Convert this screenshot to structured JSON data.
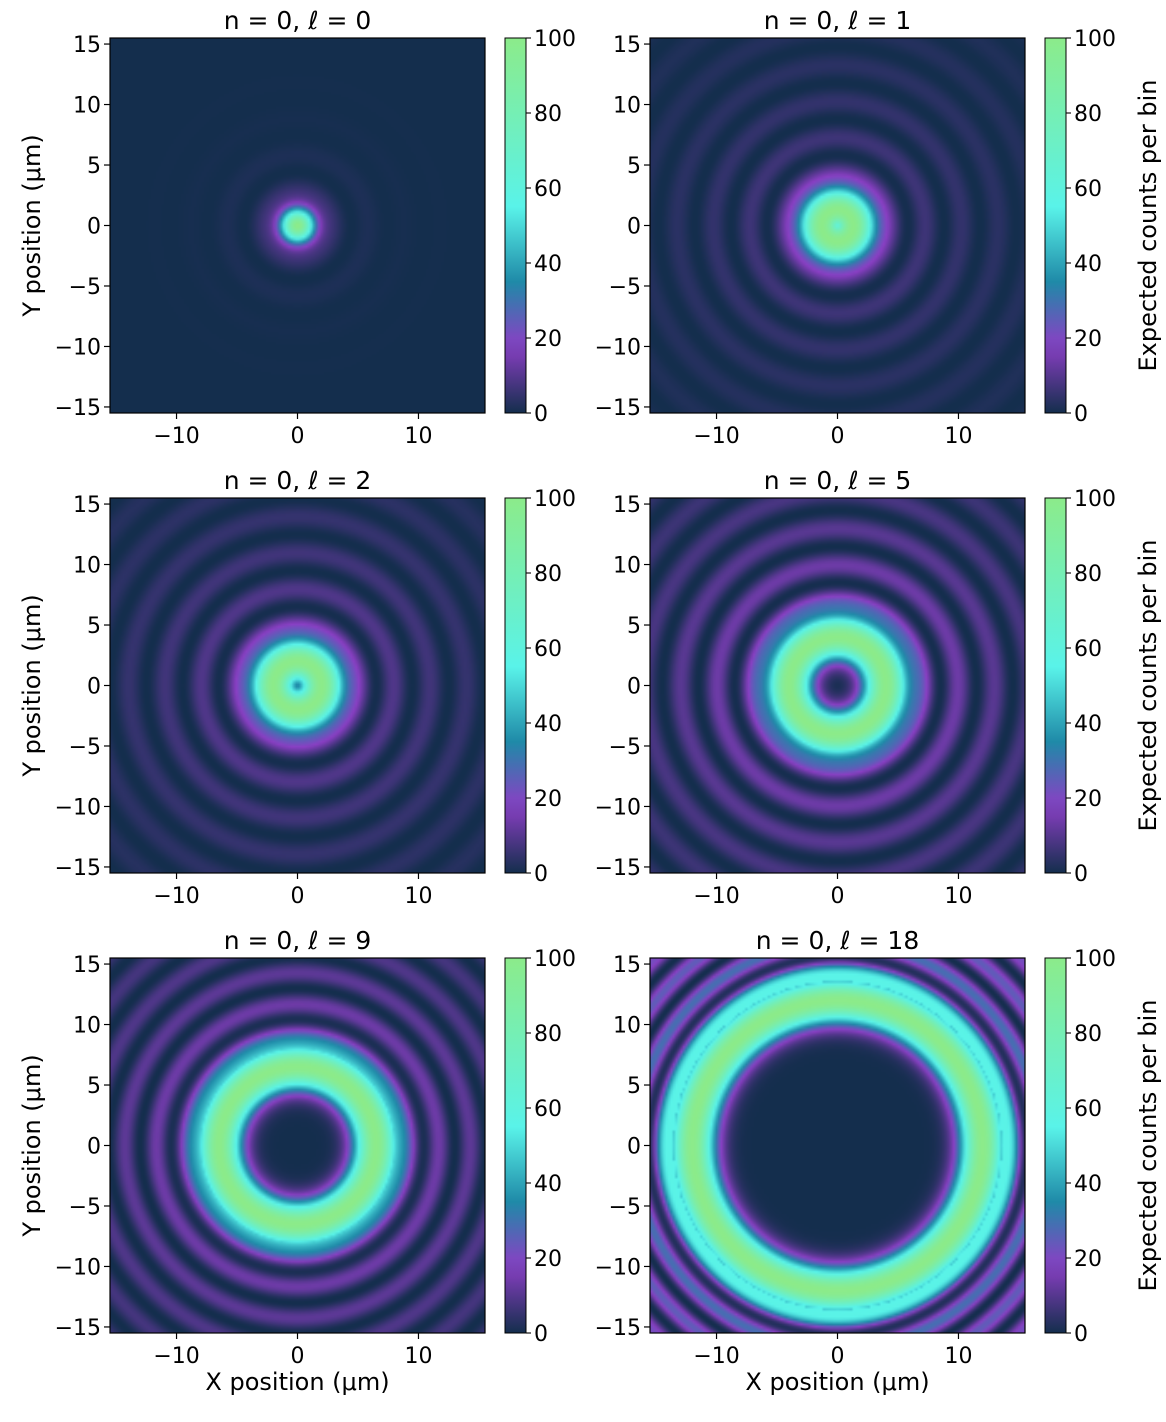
{
  "figure": {
    "xlabel": "X position (μm)",
    "ylabel": "Y position (μm)",
    "colorbar_label": "Expected counts per bin",
    "colormap": [
      "#142e4d",
      "#8a3fc4",
      "#1f8aa8",
      "#59f3e9",
      "#8ceb8a"
    ]
  },
  "chart_data": [
    {
      "type": "heatmap",
      "title": "n = 0, ℓ = 0",
      "n": 0,
      "l": 0,
      "xlabel": "",
      "ylabel": "Y position (μm)",
      "xlim": [
        -15.5,
        15.5
      ],
      "ylim": [
        -15.5,
        15.5
      ],
      "xticks": [
        -10,
        0,
        10
      ],
      "yticks": [
        -15,
        -10,
        -5,
        0,
        5,
        10,
        15
      ],
      "colorbar": {
        "ticks": [
          0,
          20,
          40,
          60,
          80,
          100
        ],
        "range": [
          0,
          100
        ],
        "label": ""
      },
      "ring_peak_radius_um": 0.0,
      "main_ring_peak": 100,
      "side_ring_peak": 8,
      "side_ring_period_um": 3.0
    },
    {
      "type": "heatmap",
      "title": "n = 0, ℓ = 1",
      "n": 0,
      "l": 1,
      "xlabel": "",
      "ylabel": "",
      "xlim": [
        -15.5,
        15.5
      ],
      "ylim": [
        -15.5,
        15.5
      ],
      "xticks": [
        -10,
        0,
        10
      ],
      "yticks": [
        -15,
        -10,
        -5,
        0,
        5,
        10,
        15
      ],
      "colorbar": {
        "ticks": [
          0,
          20,
          40,
          60,
          80,
          100
        ],
        "range": [
          0,
          100
        ],
        "label": "Expected counts per bin"
      },
      "ring_peak_radius_um": 1.3,
      "main_ring_peak": 100,
      "side_ring_peak": 10,
      "side_ring_period_um": 3.0
    },
    {
      "type": "heatmap",
      "title": "n = 0, ℓ = 2",
      "n": 0,
      "l": 2,
      "xlabel": "",
      "ylabel": "Y position (μm)",
      "xlim": [
        -15.5,
        15.5
      ],
      "ylim": [
        -15.5,
        15.5
      ],
      "xticks": [
        -10,
        0,
        10
      ],
      "yticks": [
        -15,
        -10,
        -5,
        0,
        5,
        10,
        15
      ],
      "colorbar": {
        "ticks": [
          0,
          20,
          40,
          60,
          80,
          100
        ],
        "range": [
          0,
          100
        ],
        "label": ""
      },
      "ring_peak_radius_um": 2.0,
      "main_ring_peak": 100,
      "side_ring_peak": 14,
      "side_ring_period_um": 3.0
    },
    {
      "type": "heatmap",
      "title": "n = 0, ℓ = 5",
      "n": 0,
      "l": 5,
      "xlabel": "",
      "ylabel": "",
      "xlim": [
        -15.5,
        15.5
      ],
      "ylim": [
        -15.5,
        15.5
      ],
      "xticks": [
        -10,
        0,
        10
      ],
      "yticks": [
        -15,
        -10,
        -5,
        0,
        5,
        10,
        15
      ],
      "colorbar": {
        "ticks": [
          0,
          20,
          40,
          60,
          80,
          100
        ],
        "range": [
          0,
          100
        ],
        "label": "Expected counts per bin"
      },
      "ring_peak_radius_um": 4.0,
      "main_ring_peak": 100,
      "side_ring_peak": 20,
      "side_ring_period_um": 3.0
    },
    {
      "type": "heatmap",
      "title": "n = 0, ℓ = 9",
      "n": 0,
      "l": 9,
      "xlabel": "X position (μm)",
      "ylabel": "Y position (μm)",
      "xlim": [
        -15.5,
        15.5
      ],
      "ylim": [
        -15.5,
        15.5
      ],
      "xticks": [
        -10,
        0,
        10
      ],
      "yticks": [
        -15,
        -10,
        -5,
        0,
        5,
        10,
        15
      ],
      "colorbar": {
        "ticks": [
          0,
          20,
          40,
          60,
          80,
          100
        ],
        "range": [
          0,
          100
        ],
        "label": ""
      },
      "ring_peak_radius_um": 6.5,
      "main_ring_peak": 100,
      "side_ring_peak": 18,
      "side_ring_period_um": 2.6
    },
    {
      "type": "heatmap",
      "title": "n = 0, ℓ = 18",
      "n": 0,
      "l": 18,
      "xlabel": "X position (μm)",
      "ylabel": "",
      "xlim": [
        -15.5,
        15.5
      ],
      "ylim": [
        -15.5,
        15.5
      ],
      "xticks": [
        -10,
        0,
        10
      ],
      "yticks": [
        -15,
        -10,
        -5,
        0,
        5,
        10,
        15
      ],
      "colorbar": {
        "ticks": [
          0,
          20,
          40,
          60,
          80,
          100
        ],
        "range": [
          0,
          100
        ],
        "label": "Expected counts per bin"
      },
      "ring_peak_radius_um": 12.0,
      "main_ring_peak": 100,
      "side_ring_peak": 35,
      "side_ring_period_um": 2.4
    }
  ]
}
